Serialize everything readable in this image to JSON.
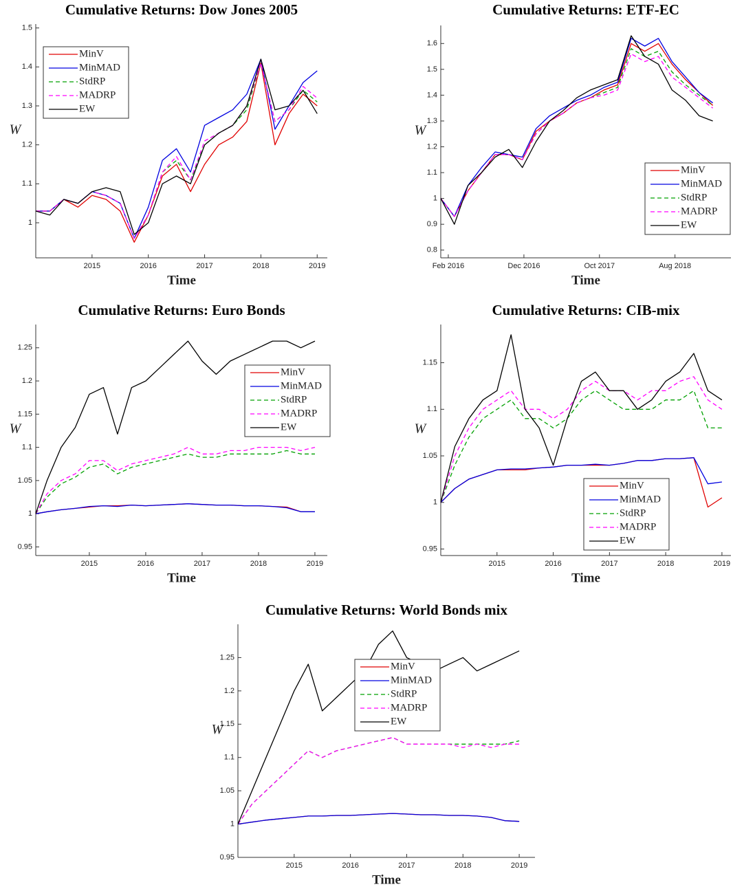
{
  "chart_data": [
    {
      "type": "line",
      "title": "Cumulative Returns:  Dow Jones 2005",
      "xlabel": "Time",
      "ylabel": "W",
      "legend": "northwest",
      "x": [
        2014.0,
        2014.25,
        2014.5,
        2014.75,
        2015.0,
        2015.25,
        2015.5,
        2015.75,
        2016.0,
        2016.25,
        2016.5,
        2016.75,
        2017.0,
        2017.25,
        2017.5,
        2017.75,
        2018.0,
        2018.25,
        2018.5,
        2018.75,
        2019.0
      ],
      "xlim": [
        2014.0,
        2019.18
      ],
      "ylim": [
        0.91,
        1.51
      ],
      "xticks": [
        2015,
        2016,
        2017,
        2018,
        2019
      ],
      "yticks": [
        1,
        1.1,
        1.2,
        1.3,
        1.4,
        1.5
      ],
      "series": [
        {
          "name": "MinV",
          "color": "#e00000",
          "dashed": false,
          "values": [
            1.03,
            1.03,
            1.06,
            1.04,
            1.07,
            1.06,
            1.03,
            0.95,
            1.02,
            1.12,
            1.15,
            1.08,
            1.15,
            1.2,
            1.22,
            1.26,
            1.41,
            1.2,
            1.28,
            1.33,
            1.3
          ]
        },
        {
          "name": "MinMAD",
          "color": "#0000e0",
          "dashed": false,
          "values": [
            1.03,
            1.03,
            1.06,
            1.05,
            1.08,
            1.07,
            1.05,
            0.96,
            1.04,
            1.16,
            1.19,
            1.13,
            1.25,
            1.27,
            1.29,
            1.33,
            1.42,
            1.24,
            1.3,
            1.36,
            1.39
          ]
        },
        {
          "name": "StdRP",
          "color": "#00a000",
          "dashed": true,
          "values": [
            1.03,
            1.03,
            1.06,
            1.05,
            1.08,
            1.07,
            1.05,
            0.96,
            1.02,
            1.13,
            1.16,
            1.11,
            1.2,
            1.23,
            1.25,
            1.29,
            1.41,
            1.26,
            1.29,
            1.34,
            1.31
          ]
        },
        {
          "name": "MADRP",
          "color": "#ff00ff",
          "dashed": true,
          "values": [
            1.03,
            1.03,
            1.06,
            1.05,
            1.08,
            1.07,
            1.05,
            0.96,
            1.02,
            1.13,
            1.17,
            1.11,
            1.21,
            1.23,
            1.25,
            1.3,
            1.41,
            1.26,
            1.29,
            1.35,
            1.32
          ]
        },
        {
          "name": "EW",
          "color": "#000000",
          "dashed": false,
          "values": [
            1.03,
            1.02,
            1.06,
            1.05,
            1.08,
            1.09,
            1.08,
            0.97,
            1.0,
            1.1,
            1.12,
            1.1,
            1.2,
            1.23,
            1.25,
            1.3,
            1.42,
            1.29,
            1.3,
            1.34,
            1.28
          ]
        }
      ]
    },
    {
      "type": "line",
      "title": "Cumulative Returns:  ETF-EC",
      "xlabel": "Time",
      "ylabel": "W",
      "legend": "southeast",
      "x": [
        2016.0,
        2016.15,
        2016.3,
        2016.45,
        2016.6,
        2016.75,
        2016.9,
        2017.05,
        2017.2,
        2017.35,
        2017.5,
        2017.65,
        2017.8,
        2017.95,
        2018.1,
        2018.25,
        2018.4,
        2018.55,
        2018.7,
        2018.85,
        2019.0
      ],
      "xlim": [
        2016.0,
        2019.2
      ],
      "ylim": [
        0.77,
        1.67
      ],
      "xticks": [
        {
          "value": 2016.083,
          "label": "Feb 2016"
        },
        {
          "value": 2016.917,
          "label": "Dec 2016"
        },
        {
          "value": 2017.75,
          "label": "Oct 2017"
        },
        {
          "value": 2018.583,
          "label": "Aug 2018"
        }
      ],
      "yticks": [
        0.8,
        0.9,
        1,
        1.1,
        1.2,
        1.3,
        1.4,
        1.5,
        1.6
      ],
      "series": [
        {
          "name": "MinV",
          "color": "#e00000",
          "dashed": false,
          "values": [
            1.0,
            0.93,
            1.03,
            1.1,
            1.17,
            1.17,
            1.15,
            1.26,
            1.3,
            1.33,
            1.37,
            1.39,
            1.42,
            1.44,
            1.6,
            1.57,
            1.6,
            1.52,
            1.46,
            1.41,
            1.36
          ]
        },
        {
          "name": "MinMAD",
          "color": "#0000e0",
          "dashed": false,
          "values": [
            1.0,
            0.93,
            1.05,
            1.12,
            1.18,
            1.17,
            1.16,
            1.27,
            1.32,
            1.35,
            1.38,
            1.4,
            1.43,
            1.45,
            1.62,
            1.59,
            1.62,
            1.53,
            1.47,
            1.41,
            1.37
          ]
        },
        {
          "name": "StdRP",
          "color": "#00a000",
          "dashed": true,
          "values": [
            1.0,
            0.93,
            1.03,
            1.1,
            1.17,
            1.17,
            1.15,
            1.25,
            1.3,
            1.33,
            1.37,
            1.39,
            1.41,
            1.43,
            1.58,
            1.55,
            1.57,
            1.49,
            1.44,
            1.4,
            1.36
          ]
        },
        {
          "name": "MADRP",
          "color": "#ff00ff",
          "dashed": true,
          "values": [
            1.0,
            0.93,
            1.03,
            1.1,
            1.17,
            1.17,
            1.15,
            1.25,
            1.3,
            1.33,
            1.37,
            1.39,
            1.4,
            1.42,
            1.56,
            1.53,
            1.55,
            1.47,
            1.43,
            1.39,
            1.35
          ]
        },
        {
          "name": "EW",
          "color": "#000000",
          "dashed": false,
          "values": [
            1.0,
            0.9,
            1.05,
            1.1,
            1.16,
            1.19,
            1.12,
            1.22,
            1.3,
            1.34,
            1.39,
            1.42,
            1.44,
            1.46,
            1.63,
            1.55,
            1.52,
            1.42,
            1.38,
            1.32,
            1.3
          ]
        }
      ]
    },
    {
      "type": "line",
      "title": "Cumulative Returns:  Euro Bonds",
      "xlabel": "Time",
      "ylabel": "W",
      "legend": "northeast",
      "x": [
        2014.05,
        2014.25,
        2014.5,
        2014.75,
        2015.0,
        2015.25,
        2015.5,
        2015.75,
        2016.0,
        2016.25,
        2016.5,
        2016.75,
        2017.0,
        2017.25,
        2017.5,
        2017.75,
        2018.0,
        2018.25,
        2018.5,
        2018.75,
        2019.0
      ],
      "xlim": [
        2014.05,
        2019.22
      ],
      "ylim": [
        0.937,
        1.285
      ],
      "xticks": [
        2015,
        2016,
        2017,
        2018,
        2019
      ],
      "yticks": [
        0.95,
        1,
        1.05,
        1.1,
        1.15,
        1.2,
        1.25
      ],
      "series": [
        {
          "name": "MinV",
          "color": "#e00000",
          "dashed": false,
          "values": [
            1.0,
            1.003,
            1.006,
            1.008,
            1.01,
            1.012,
            1.012,
            1.013,
            1.012,
            1.013,
            1.014,
            1.015,
            1.014,
            1.013,
            1.013,
            1.012,
            1.012,
            1.011,
            1.01,
            1.003,
            1.003
          ]
        },
        {
          "name": "MinMAD",
          "color": "#0000e0",
          "dashed": false,
          "values": [
            1.0,
            1.003,
            1.006,
            1.008,
            1.011,
            1.012,
            1.011,
            1.013,
            1.012,
            1.013,
            1.014,
            1.015,
            1.014,
            1.013,
            1.013,
            1.012,
            1.012,
            1.011,
            1.009,
            1.003,
            1.003
          ]
        },
        {
          "name": "StdRP",
          "color": "#00a000",
          "dashed": true,
          "values": [
            1.0,
            1.025,
            1.045,
            1.055,
            1.07,
            1.075,
            1.06,
            1.07,
            1.075,
            1.08,
            1.085,
            1.09,
            1.085,
            1.085,
            1.09,
            1.09,
            1.09,
            1.09,
            1.095,
            1.09,
            1.09
          ]
        },
        {
          "name": "MADRP",
          "color": "#ff00ff",
          "dashed": true,
          "values": [
            1.0,
            1.03,
            1.05,
            1.06,
            1.08,
            1.08,
            1.065,
            1.075,
            1.08,
            1.085,
            1.09,
            1.1,
            1.09,
            1.09,
            1.095,
            1.095,
            1.1,
            1.1,
            1.1,
            1.095,
            1.1
          ]
        },
        {
          "name": "EW",
          "color": "#000000",
          "dashed": false,
          "values": [
            1.0,
            1.05,
            1.1,
            1.13,
            1.18,
            1.19,
            1.12,
            1.19,
            1.2,
            1.22,
            1.24,
            1.26,
            1.23,
            1.21,
            1.23,
            1.24,
            1.25,
            1.26,
            1.26,
            1.25,
            1.26
          ]
        }
      ]
    },
    {
      "type": "line",
      "title": "Cumulative Returns:  CIB-mix",
      "xlabel": "Time",
      "ylabel": "W",
      "legend": "south",
      "x": [
        2014.0,
        2014.25,
        2014.5,
        2014.75,
        2015.0,
        2015.25,
        2015.5,
        2015.75,
        2016.0,
        2016.25,
        2016.5,
        2016.75,
        2017.0,
        2017.25,
        2017.5,
        2017.75,
        2018.0,
        2018.25,
        2018.5,
        2018.75,
        2019.0
      ],
      "xlim": [
        2014.0,
        2019.16
      ],
      "ylim": [
        0.943,
        1.191
      ],
      "xticks": [
        2015,
        2016,
        2017,
        2018,
        2019
      ],
      "yticks": [
        0.95,
        1,
        1.05,
        1.1,
        1.15
      ],
      "series": [
        {
          "name": "MinV",
          "color": "#e00000",
          "dashed": false,
          "values": [
            1.0,
            1.015,
            1.025,
            1.03,
            1.035,
            1.035,
            1.035,
            1.037,
            1.038,
            1.04,
            1.04,
            1.04,
            1.04,
            1.042,
            1.045,
            1.045,
            1.047,
            1.047,
            1.048,
            0.995,
            1.005
          ]
        },
        {
          "name": "MinMAD",
          "color": "#0000e0",
          "dashed": false,
          "values": [
            1.0,
            1.015,
            1.025,
            1.03,
            1.035,
            1.036,
            1.036,
            1.037,
            1.038,
            1.04,
            1.04,
            1.041,
            1.04,
            1.042,
            1.045,
            1.045,
            1.047,
            1.047,
            1.048,
            1.02,
            1.022
          ]
        },
        {
          "name": "StdRP",
          "color": "#00a000",
          "dashed": true,
          "values": [
            1.0,
            1.04,
            1.07,
            1.09,
            1.1,
            1.11,
            1.09,
            1.09,
            1.08,
            1.09,
            1.11,
            1.12,
            1.11,
            1.1,
            1.1,
            1.1,
            1.11,
            1.11,
            1.12,
            1.08,
            1.08
          ]
        },
        {
          "name": "MADRP",
          "color": "#ff00ff",
          "dashed": true,
          "values": [
            1.0,
            1.05,
            1.08,
            1.1,
            1.11,
            1.12,
            1.1,
            1.1,
            1.09,
            1.1,
            1.12,
            1.13,
            1.12,
            1.12,
            1.11,
            1.12,
            1.12,
            1.13,
            1.135,
            1.11,
            1.1
          ]
        },
        {
          "name": "EW",
          "color": "#000000",
          "dashed": false,
          "values": [
            1.0,
            1.06,
            1.09,
            1.11,
            1.12,
            1.18,
            1.1,
            1.08,
            1.04,
            1.09,
            1.13,
            1.14,
            1.12,
            1.12,
            1.1,
            1.11,
            1.13,
            1.14,
            1.16,
            1.12,
            1.11
          ]
        }
      ]
    },
    {
      "type": "line",
      "title": "Cumulative Returns:  World Bonds mix",
      "xlabel": "Time",
      "ylabel": "W",
      "legend": "north",
      "x": [
        2014.0,
        2014.25,
        2014.5,
        2014.75,
        2015.0,
        2015.25,
        2015.5,
        2015.75,
        2016.0,
        2016.25,
        2016.5,
        2016.75,
        2017.0,
        2017.25,
        2017.5,
        2017.75,
        2018.0,
        2018.25,
        2018.5,
        2018.75,
        2019.0
      ],
      "xlim": [
        2014.0,
        2019.28
      ],
      "ylim": [
        0.95,
        1.3
      ],
      "xticks": [
        2015,
        2016,
        2017,
        2018,
        2019
      ],
      "yticks": [
        0.95,
        1,
        1.05,
        1.1,
        1.15,
        1.2,
        1.25
      ],
      "series": [
        {
          "name": "MinV",
          "color": "#e00000",
          "dashed": false,
          "values": [
            1.0,
            1.003,
            1.006,
            1.008,
            1.01,
            1.012,
            1.012,
            1.013,
            1.013,
            1.014,
            1.015,
            1.016,
            1.015,
            1.014,
            1.014,
            1.013,
            1.013,
            1.012,
            1.01,
            1.005,
            1.004
          ]
        },
        {
          "name": "MinMAD",
          "color": "#0000e0",
          "dashed": false,
          "values": [
            1.0,
            1.003,
            1.006,
            1.008,
            1.01,
            1.012,
            1.012,
            1.013,
            1.013,
            1.014,
            1.015,
            1.016,
            1.015,
            1.014,
            1.014,
            1.013,
            1.013,
            1.012,
            1.01,
            1.005,
            1.004
          ]
        },
        {
          "name": "StdRP",
          "color": "#00a000",
          "dashed": true,
          "values": [
            1.0,
            1.03,
            1.05,
            1.07,
            1.09,
            1.11,
            1.1,
            1.11,
            1.115,
            1.12,
            1.125,
            1.13,
            1.12,
            1.12,
            1.12,
            1.12,
            1.12,
            1.12,
            1.12,
            1.12,
            1.125
          ]
        },
        {
          "name": "MADRP",
          "color": "#ff00ff",
          "dashed": true,
          "values": [
            1.0,
            1.03,
            1.05,
            1.07,
            1.09,
            1.11,
            1.1,
            1.11,
            1.115,
            1.12,
            1.125,
            1.13,
            1.12,
            1.12,
            1.12,
            1.12,
            1.115,
            1.12,
            1.115,
            1.12,
            1.12
          ]
        },
        {
          "name": "EW",
          "color": "#000000",
          "dashed": false,
          "values": [
            1.0,
            1.05,
            1.1,
            1.15,
            1.2,
            1.24,
            1.17,
            1.19,
            1.21,
            1.23,
            1.27,
            1.29,
            1.25,
            1.24,
            1.23,
            1.24,
            1.25,
            1.23,
            1.24,
            1.25,
            1.26
          ]
        }
      ]
    }
  ]
}
